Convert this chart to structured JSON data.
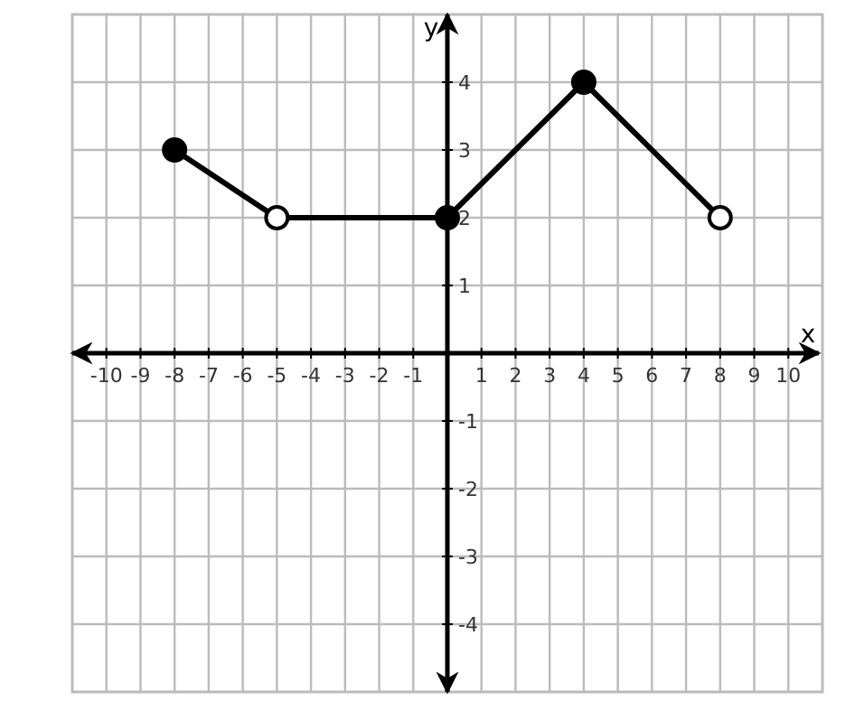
{
  "chart_data": {
    "type": "line",
    "xlabel": "x",
    "ylabel": "y",
    "xlim": [
      -11,
      11
    ],
    "ylim": [
      -5,
      5
    ],
    "xticks": [
      -10,
      -9,
      -8,
      -7,
      -6,
      -5,
      -4,
      -3,
      -2,
      -1,
      1,
      2,
      3,
      4,
      5,
      6,
      7,
      8,
      9,
      10
    ],
    "yticks": [
      -4,
      -3,
      -2,
      -1,
      1,
      2,
      3,
      4
    ],
    "grid": true,
    "line_style": "solid",
    "series": [
      {
        "color": "#000000",
        "x": [
          -8,
          -5,
          0,
          4,
          8
        ],
        "values": [
          3,
          2,
          2,
          4,
          2
        ]
      },
      {
        "type": "scatter",
        "marker": "circle",
        "color": "#000000",
        "x": [
          -8,
          0,
          4
        ],
        "values": [
          3,
          2,
          4
        ]
      },
      {
        "type": "scatter",
        "marker": "circle",
        "color": "#ffffff",
        "x": [
          -5,
          8
        ],
        "values": [
          2,
          2
        ]
      }
    ]
  }
}
